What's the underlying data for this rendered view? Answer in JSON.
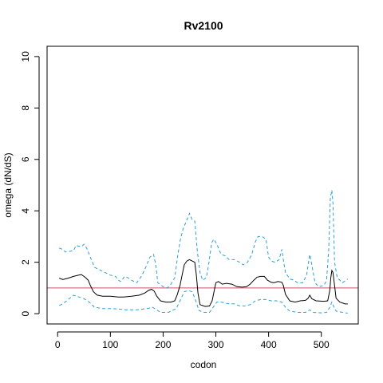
{
  "chart_data": {
    "type": "line",
    "title": "Rv2100",
    "xlabel": "codon",
    "ylabel": "omega (dN/dS)",
    "xlim": [
      -20,
      570
    ],
    "ylim": [
      -0.4,
      10.4
    ],
    "xticks": [
      0,
      100,
      200,
      300,
      400,
      500
    ],
    "yticks": [
      0,
      2,
      4,
      6,
      8,
      10
    ],
    "grid": false,
    "reference_line": {
      "y": 1,
      "color": "#c8556e"
    },
    "colors": {
      "estimate": "#000000",
      "bounds": "#2e9fd8"
    },
    "series": [
      {
        "role": "estimate",
        "style": "solid",
        "points": [
          [
            3,
            1.38
          ],
          [
            10,
            1.33
          ],
          [
            20,
            1.38
          ],
          [
            30,
            1.45
          ],
          [
            40,
            1.5
          ],
          [
            45,
            1.52
          ],
          [
            52,
            1.42
          ],
          [
            58,
            1.3
          ],
          [
            62,
            1.1
          ],
          [
            68,
            0.85
          ],
          [
            75,
            0.72
          ],
          [
            85,
            0.68
          ],
          [
            100,
            0.68
          ],
          [
            115,
            0.65
          ],
          [
            125,
            0.65
          ],
          [
            140,
            0.68
          ],
          [
            155,
            0.72
          ],
          [
            165,
            0.8
          ],
          [
            172,
            0.9
          ],
          [
            178,
            0.95
          ],
          [
            183,
            0.88
          ],
          [
            188,
            0.68
          ],
          [
            195,
            0.5
          ],
          [
            205,
            0.45
          ],
          [
            215,
            0.45
          ],
          [
            222,
            0.5
          ],
          [
            227,
            0.75
          ],
          [
            232,
            1.1
          ],
          [
            236,
            1.5
          ],
          [
            240,
            1.9
          ],
          [
            245,
            2.05
          ],
          [
            250,
            2.1
          ],
          [
            255,
            2.05
          ],
          [
            260,
            2.0
          ],
          [
            263,
            1.5
          ],
          [
            266,
            0.8
          ],
          [
            270,
            0.35
          ],
          [
            280,
            0.28
          ],
          [
            288,
            0.3
          ],
          [
            293,
            0.5
          ],
          [
            297,
            0.9
          ],
          [
            300,
            1.2
          ],
          [
            305,
            1.25
          ],
          [
            312,
            1.15
          ],
          [
            320,
            1.18
          ],
          [
            330,
            1.15
          ],
          [
            340,
            1.05
          ],
          [
            350,
            1.03
          ],
          [
            358,
            1.05
          ],
          [
            365,
            1.15
          ],
          [
            372,
            1.3
          ],
          [
            378,
            1.42
          ],
          [
            385,
            1.45
          ],
          [
            392,
            1.45
          ],
          [
            398,
            1.3
          ],
          [
            405,
            1.22
          ],
          [
            410,
            1.2
          ],
          [
            418,
            1.25
          ],
          [
            425,
            1.22
          ],
          [
            428,
            1.1
          ],
          [
            432,
            0.75
          ],
          [
            440,
            0.5
          ],
          [
            450,
            0.45
          ],
          [
            460,
            0.5
          ],
          [
            470,
            0.52
          ],
          [
            475,
            0.6
          ],
          [
            478,
            0.72
          ],
          [
            482,
            0.58
          ],
          [
            490,
            0.5
          ],
          [
            505,
            0.48
          ],
          [
            512,
            0.5
          ],
          [
            516,
            0.9
          ],
          [
            518,
            1.4
          ],
          [
            520,
            1.68
          ],
          [
            522,
            1.6
          ],
          [
            525,
            1.1
          ],
          [
            528,
            0.6
          ],
          [
            535,
            0.45
          ],
          [
            545,
            0.38
          ],
          [
            550,
            0.38
          ]
        ]
      },
      {
        "role": "upper bound",
        "style": "dashed",
        "points": [
          [
            3,
            2.55
          ],
          [
            10,
            2.5
          ],
          [
            15,
            2.4
          ],
          [
            30,
            2.45
          ],
          [
            35,
            2.65
          ],
          [
            45,
            2.6
          ],
          [
            50,
            2.7
          ],
          [
            55,
            2.55
          ],
          [
            60,
            2.3
          ],
          [
            65,
            2.05
          ],
          [
            70,
            1.8
          ],
          [
            80,
            1.7
          ],
          [
            90,
            1.6
          ],
          [
            100,
            1.5
          ],
          [
            110,
            1.45
          ],
          [
            115,
            1.3
          ],
          [
            120,
            1.25
          ],
          [
            127,
            1.45
          ],
          [
            133,
            1.4
          ],
          [
            140,
            1.3
          ],
          [
            150,
            1.2
          ],
          [
            160,
            1.5
          ],
          [
            168,
            1.85
          ],
          [
            175,
            2.2
          ],
          [
            182,
            2.3
          ],
          [
            186,
            1.9
          ],
          [
            190,
            1.2
          ],
          [
            200,
            1.05
          ],
          [
            208,
            1.0
          ],
          [
            215,
            1.15
          ],
          [
            222,
            1.4
          ],
          [
            228,
            2.3
          ],
          [
            233,
            2.9
          ],
          [
            238,
            3.3
          ],
          [
            245,
            3.65
          ],
          [
            250,
            3.9
          ],
          [
            255,
            3.65
          ],
          [
            260,
            3.6
          ],
          [
            265,
            2.4
          ],
          [
            270,
            1.6
          ],
          [
            275,
            1.3
          ],
          [
            282,
            1.4
          ],
          [
            287,
            2.0
          ],
          [
            292,
            2.75
          ],
          [
            296,
            2.9
          ],
          [
            302,
            2.7
          ],
          [
            310,
            2.3
          ],
          [
            318,
            2.25
          ],
          [
            325,
            2.1
          ],
          [
            335,
            2.1
          ],
          [
            345,
            2.0
          ],
          [
            352,
            1.9
          ],
          [
            360,
            2.0
          ],
          [
            368,
            2.3
          ],
          [
            375,
            2.8
          ],
          [
            380,
            3.0
          ],
          [
            388,
            3.0
          ],
          [
            395,
            2.9
          ],
          [
            400,
            2.2
          ],
          [
            405,
            2.05
          ],
          [
            412,
            2.0
          ],
          [
            420,
            2.1
          ],
          [
            425,
            2.5
          ],
          [
            428,
            2.1
          ],
          [
            432,
            1.6
          ],
          [
            440,
            1.35
          ],
          [
            448,
            1.3
          ],
          [
            455,
            1.2
          ],
          [
            465,
            1.2
          ],
          [
            472,
            1.5
          ],
          [
            478,
            2.3
          ],
          [
            482,
            1.9
          ],
          [
            488,
            1.2
          ],
          [
            495,
            1.05
          ],
          [
            505,
            1.1
          ],
          [
            510,
            1.3
          ],
          [
            514,
            2.5
          ],
          [
            517,
            4.5
          ],
          [
            520,
            4.8
          ],
          [
            522,
            4.3
          ],
          [
            525,
            2.0
          ],
          [
            530,
            1.4
          ],
          [
            540,
            1.2
          ],
          [
            550,
            1.35
          ]
        ]
      },
      {
        "role": "lower bound",
        "style": "dashed",
        "points": [
          [
            3,
            0.32
          ],
          [
            10,
            0.38
          ],
          [
            20,
            0.55
          ],
          [
            30,
            0.72
          ],
          [
            40,
            0.65
          ],
          [
            50,
            0.58
          ],
          [
            60,
            0.45
          ],
          [
            70,
            0.25
          ],
          [
            85,
            0.2
          ],
          [
            100,
            0.2
          ],
          [
            115,
            0.18
          ],
          [
            130,
            0.15
          ],
          [
            150,
            0.15
          ],
          [
            170,
            0.2
          ],
          [
            180,
            0.25
          ],
          [
            188,
            0.15
          ],
          [
            195,
            0.05
          ],
          [
            210,
            0.05
          ],
          [
            225,
            0.2
          ],
          [
            232,
            0.5
          ],
          [
            240,
            0.85
          ],
          [
            248,
            0.9
          ],
          [
            255,
            0.85
          ],
          [
            262,
            0.5
          ],
          [
            268,
            0.12
          ],
          [
            278,
            0.05
          ],
          [
            288,
            0.05
          ],
          [
            295,
            0.25
          ],
          [
            302,
            0.45
          ],
          [
            310,
            0.45
          ],
          [
            320,
            0.4
          ],
          [
            335,
            0.38
          ],
          [
            345,
            0.3
          ],
          [
            355,
            0.3
          ],
          [
            365,
            0.35
          ],
          [
            375,
            0.5
          ],
          [
            385,
            0.55
          ],
          [
            395,
            0.55
          ],
          [
            405,
            0.5
          ],
          [
            415,
            0.5
          ],
          [
            425,
            0.45
          ],
          [
            432,
            0.25
          ],
          [
            440,
            0.1
          ],
          [
            455,
            0.05
          ],
          [
            470,
            0.05
          ],
          [
            478,
            0.15
          ],
          [
            485,
            0.05
          ],
          [
            500,
            0.03
          ],
          [
            510,
            0.05
          ],
          [
            516,
            0.25
          ],
          [
            520,
            0.45
          ],
          [
            523,
            0.3
          ],
          [
            528,
            0.1
          ],
          [
            540,
            0.05
          ],
          [
            550,
            0.02
          ]
        ]
      }
    ]
  }
}
